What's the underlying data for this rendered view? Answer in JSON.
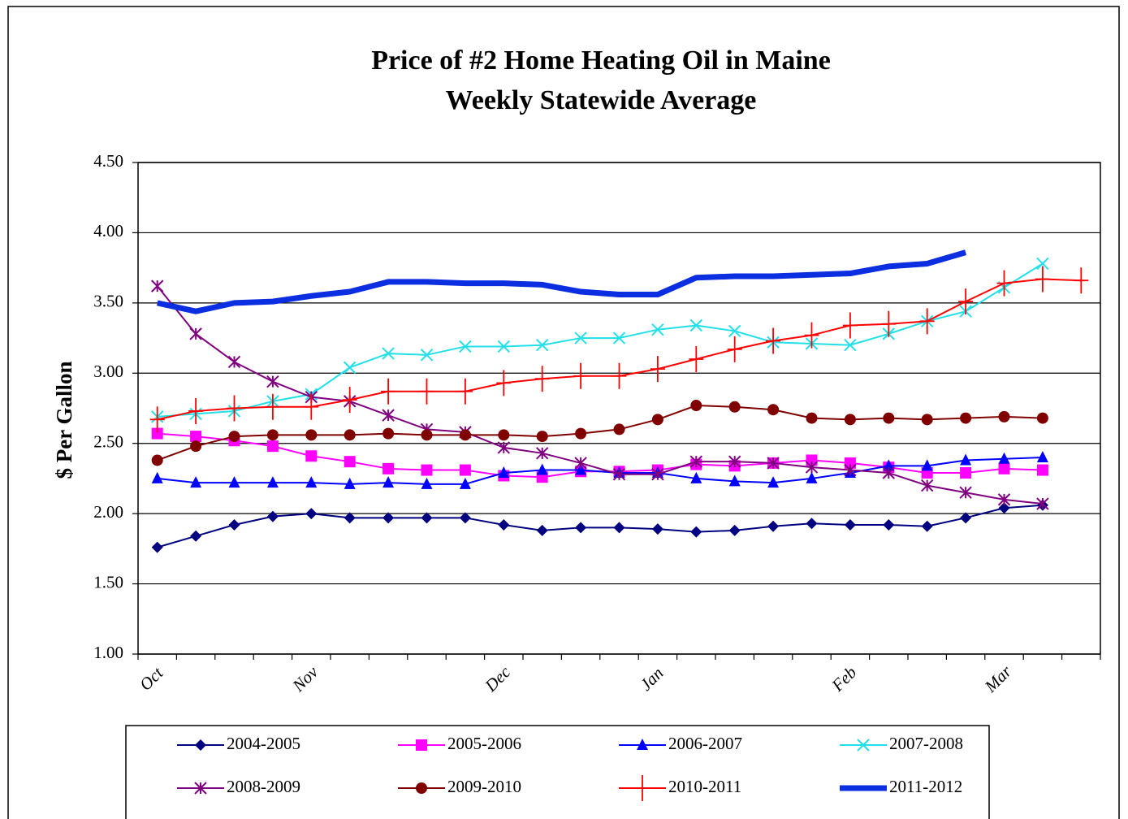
{
  "chart_data": {
    "type": "line",
    "title": "Price of #2 Home Heating Oil in Maine",
    "subtitle": "Weekly Statewide Average",
    "y_label": "$ Per Gallon",
    "categories": [
      "Oct",
      null,
      null,
      null,
      "Nov",
      null,
      null,
      null,
      null,
      "Dec",
      null,
      null,
      null,
      "Jan",
      null,
      null,
      null,
      null,
      "Feb",
      null,
      null,
      null,
      "Mar",
      null,
      null
    ],
    "ylim": [
      1.0,
      4.5
    ],
    "yticks": [
      {
        "value": 1.0,
        "label": "1.00"
      },
      {
        "value": 1.5,
        "label": "1.50"
      },
      {
        "value": 2.0,
        "label": "2.00"
      },
      {
        "value": 2.5,
        "label": "2.50"
      },
      {
        "value": 3.0,
        "label": "3.00"
      },
      {
        "value": 3.5,
        "label": "3.50"
      },
      {
        "value": 4.0,
        "label": "4.00"
      },
      {
        "value": 4.5,
        "label": "4.50"
      }
    ],
    "grid": true,
    "legend": "bottom",
    "series": [
      {
        "name": "2004-2005",
        "color": "#000080",
        "marker": "diamond",
        "values": [
          1.76,
          1.84,
          1.92,
          1.98,
          2.0,
          1.97,
          1.97,
          1.97,
          1.97,
          1.92,
          1.88,
          1.9,
          1.9,
          1.89,
          1.87,
          1.88,
          1.91,
          1.93,
          1.92,
          1.92,
          1.91,
          1.97,
          2.04,
          2.06,
          null
        ]
      },
      {
        "name": "2005-2006",
        "color": "#ff00ff",
        "marker": "square",
        "values": [
          2.57,
          2.55,
          2.52,
          2.48,
          2.41,
          2.37,
          2.32,
          2.31,
          2.31,
          2.27,
          2.26,
          2.3,
          2.3,
          2.31,
          2.35,
          2.34,
          2.36,
          2.38,
          2.36,
          2.33,
          2.29,
          2.29,
          2.32,
          2.31,
          null
        ]
      },
      {
        "name": "2006-2007",
        "color": "#0000ff",
        "marker": "triangle",
        "values": [
          2.25,
          2.22,
          2.22,
          2.22,
          2.22,
          2.21,
          2.22,
          2.21,
          2.21,
          2.29,
          2.31,
          2.31,
          2.29,
          2.29,
          2.25,
          2.23,
          2.22,
          2.25,
          2.29,
          2.34,
          2.34,
          2.38,
          2.39,
          2.4,
          null
        ]
      },
      {
        "name": "2007-2008",
        "color": "#22e0e8",
        "marker": "x",
        "values": [
          2.69,
          2.71,
          2.73,
          2.8,
          2.85,
          3.04,
          3.14,
          3.13,
          3.19,
          3.19,
          3.2,
          3.25,
          3.25,
          3.31,
          3.34,
          3.3,
          3.22,
          3.21,
          3.2,
          3.28,
          3.37,
          3.44,
          3.61,
          3.78,
          null
        ]
      },
      {
        "name": "2008-2009",
        "color": "#800080",
        "marker": "star",
        "values": [
          3.62,
          3.28,
          3.08,
          2.94,
          2.83,
          2.8,
          2.7,
          2.6,
          2.58,
          2.47,
          2.43,
          2.36,
          2.28,
          2.28,
          2.37,
          2.37,
          2.36,
          2.33,
          2.31,
          2.29,
          2.2,
          2.15,
          2.1,
          2.07,
          null
        ]
      },
      {
        "name": "2009-2010",
        "color": "#800000",
        "marker": "circle",
        "values": [
          2.38,
          2.48,
          2.55,
          2.56,
          2.56,
          2.56,
          2.57,
          2.56,
          2.56,
          2.56,
          2.55,
          2.57,
          2.6,
          2.67,
          2.77,
          2.76,
          2.74,
          2.68,
          2.67,
          2.68,
          2.67,
          2.68,
          2.69,
          2.68,
          null
        ]
      },
      {
        "name": "2010-2011",
        "color": "#ff0000",
        "marker": "plus",
        "values": [
          2.67,
          2.73,
          2.75,
          2.76,
          2.76,
          2.81,
          2.87,
          2.87,
          2.87,
          2.93,
          2.96,
          2.98,
          2.98,
          3.03,
          3.1,
          3.17,
          3.23,
          3.27,
          3.34,
          3.35,
          3.37,
          3.51,
          3.64,
          3.67,
          3.66
        ]
      },
      {
        "name": "2011-2012",
        "color": "#0a2ee0",
        "marker": "none",
        "values": [
          3.5,
          3.44,
          3.5,
          3.51,
          3.55,
          3.58,
          3.65,
          3.65,
          3.64,
          3.64,
          3.63,
          3.58,
          3.56,
          3.56,
          3.68,
          3.69,
          3.69,
          3.7,
          3.71,
          3.76,
          3.78,
          3.86,
          null,
          null,
          null
        ]
      }
    ]
  }
}
